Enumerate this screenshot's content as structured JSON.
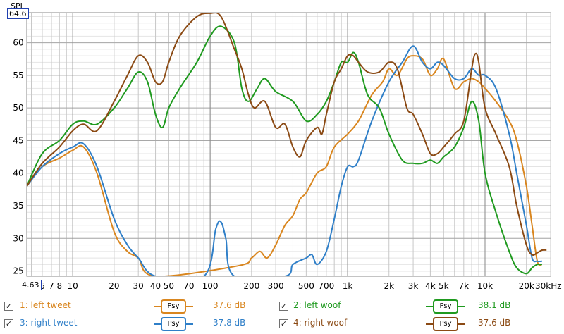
{
  "chart_data": {
    "type": "line",
    "ylabel": "SPL",
    "xscale": "log",
    "xlim": [
      4.63,
      30000
    ],
    "ylim": [
      24.2,
      64.6
    ],
    "range_max_label": "64.6",
    "range_min_label": "4.63",
    "y_ticks": [
      25,
      30,
      35,
      40,
      45,
      50,
      55,
      60
    ],
    "x_ticks": [
      {
        "v": 6,
        "t": "6"
      },
      {
        "v": 7,
        "t": "7"
      },
      {
        "v": 8,
        "t": "8"
      },
      {
        "v": 10,
        "t": "10"
      },
      {
        "v": 20,
        "t": "20"
      },
      {
        "v": 30,
        "t": "30"
      },
      {
        "v": 40,
        "t": "40"
      },
      {
        "v": 50,
        "t": "50"
      },
      {
        "v": 70,
        "t": "70"
      },
      {
        "v": 100,
        "t": "100"
      },
      {
        "v": 200,
        "t": "200"
      },
      {
        "v": 300,
        "t": "300"
      },
      {
        "v": 500,
        "t": "500"
      },
      {
        "v": 700,
        "t": "700"
      },
      {
        "v": 1000,
        "t": "1k"
      },
      {
        "v": 2000,
        "t": "2k"
      },
      {
        "v": 3000,
        "t": "3k"
      },
      {
        "v": 4000,
        "t": "4k"
      },
      {
        "v": 5000,
        "t": "5k"
      },
      {
        "v": 7000,
        "t": "7k"
      },
      {
        "v": 10000,
        "t": "10k"
      },
      {
        "v": 20000,
        "t": "20k"
      },
      {
        "v": 30000,
        "t": "30kHz"
      }
    ],
    "grid": true,
    "series": [
      {
        "name": "1: left tweet",
        "color": "#d9861f",
        "points": [
          [
            4.63,
            38
          ],
          [
            6,
            41
          ],
          [
            8,
            42.3
          ],
          [
            10,
            43.5
          ],
          [
            12,
            44
          ],
          [
            15,
            40
          ],
          [
            20,
            31
          ],
          [
            25,
            28
          ],
          [
            30,
            27
          ],
          [
            40,
            24.2
          ],
          [
            160,
            25.8
          ],
          [
            200,
            27
          ],
          [
            230,
            28
          ],
          [
            260,
            27
          ],
          [
            300,
            29
          ],
          [
            350,
            32
          ],
          [
            400,
            33.5
          ],
          [
            450,
            36
          ],
          [
            500,
            37
          ],
          [
            600,
            40
          ],
          [
            700,
            41
          ],
          [
            800,
            44
          ],
          [
            1000,
            46
          ],
          [
            1200,
            48
          ],
          [
            1500,
            52
          ],
          [
            1800,
            54
          ],
          [
            2000,
            56
          ],
          [
            2300,
            55
          ],
          [
            2700,
            57.5
          ],
          [
            3000,
            58
          ],
          [
            3500,
            57.5
          ],
          [
            4000,
            55
          ],
          [
            4500,
            56
          ],
          [
            5000,
            57.5
          ],
          [
            6000,
            53
          ],
          [
            7000,
            54
          ],
          [
            8000,
            54.5
          ],
          [
            9000,
            54
          ],
          [
            10000,
            53
          ],
          [
            12000,
            51
          ],
          [
            15000,
            48
          ],
          [
            17000,
            45
          ],
          [
            20000,
            38
          ],
          [
            22000,
            32
          ],
          [
            24000,
            26.5
          ],
          [
            26000,
            26
          ]
        ]
      },
      {
        "name": "2: left woof",
        "color": "#1f9a1f",
        "points": [
          [
            4.63,
            38
          ],
          [
            6,
            43
          ],
          [
            8,
            45
          ],
          [
            10,
            47.5
          ],
          [
            12,
            48
          ],
          [
            15,
            47.5
          ],
          [
            20,
            50
          ],
          [
            25,
            53
          ],
          [
            30,
            55.5
          ],
          [
            35,
            54
          ],
          [
            40,
            49
          ],
          [
            45,
            47
          ],
          [
            50,
            50
          ],
          [
            60,
            53
          ],
          [
            80,
            57
          ],
          [
            100,
            61
          ],
          [
            120,
            62.5
          ],
          [
            150,
            60
          ],
          [
            170,
            53
          ],
          [
            190,
            51
          ],
          [
            220,
            53
          ],
          [
            250,
            54.5
          ],
          [
            300,
            52.5
          ],
          [
            400,
            51
          ],
          [
            500,
            48
          ],
          [
            600,
            49
          ],
          [
            700,
            51
          ],
          [
            800,
            54
          ],
          [
            900,
            57
          ],
          [
            1000,
            57
          ],
          [
            1100,
            58.5
          ],
          [
            1200,
            57
          ],
          [
            1400,
            52
          ],
          [
            1700,
            50
          ],
          [
            2000,
            46
          ],
          [
            2500,
            42
          ],
          [
            3000,
            41.5
          ],
          [
            3500,
            41.5
          ],
          [
            4000,
            42
          ],
          [
            4500,
            41.5
          ],
          [
            5000,
            42.5
          ],
          [
            6000,
            44
          ],
          [
            7000,
            47
          ],
          [
            8000,
            51
          ],
          [
            9000,
            48
          ],
          [
            10000,
            40
          ],
          [
            12000,
            34
          ],
          [
            15000,
            28
          ],
          [
            17000,
            25.5
          ],
          [
            20000,
            24.6
          ],
          [
            22000,
            25.5
          ],
          [
            24000,
            26
          ],
          [
            26000,
            26
          ]
        ]
      },
      {
        "name": "3: right tweet",
        "color": "#2f7fc8",
        "points": [
          [
            4.63,
            38
          ],
          [
            6,
            41
          ],
          [
            8,
            43
          ],
          [
            10,
            44
          ],
          [
            12,
            44.5
          ],
          [
            15,
            41
          ],
          [
            20,
            33
          ],
          [
            25,
            29
          ],
          [
            30,
            27
          ],
          [
            40,
            24.2
          ],
          [
            90,
            24.2
          ],
          [
            110,
            31.5
          ],
          [
            120,
            32.5
          ],
          [
            130,
            30
          ],
          [
            150,
            24.2
          ],
          [
            350,
            24.2
          ],
          [
            400,
            26
          ],
          [
            500,
            27
          ],
          [
            550,
            27.5
          ],
          [
            600,
            26
          ],
          [
            700,
            28
          ],
          [
            800,
            33
          ],
          [
            900,
            38
          ],
          [
            1000,
            41
          ],
          [
            1100,
            41
          ],
          [
            1200,
            42
          ],
          [
            1500,
            48
          ],
          [
            2000,
            54
          ],
          [
            2500,
            57
          ],
          [
            3000,
            59.5
          ],
          [
            3500,
            57
          ],
          [
            4000,
            56
          ],
          [
            4500,
            57
          ],
          [
            5000,
            56.5
          ],
          [
            6000,
            54.5
          ],
          [
            7000,
            54.5
          ],
          [
            8000,
            56
          ],
          [
            9000,
            55
          ],
          [
            10000,
            55
          ],
          [
            12000,
            53
          ],
          [
            15000,
            46
          ],
          [
            17000,
            40
          ],
          [
            20000,
            32
          ],
          [
            22000,
            27
          ],
          [
            24000,
            26.5
          ],
          [
            26000,
            26.5
          ]
        ]
      },
      {
        "name": "4: right woof",
        "color": "#8b4a14",
        "points": [
          [
            4.63,
            38
          ],
          [
            6,
            41.5
          ],
          [
            8,
            44
          ],
          [
            10,
            46.5
          ],
          [
            12,
            47.5
          ],
          [
            15,
            46.5
          ],
          [
            20,
            51
          ],
          [
            25,
            55
          ],
          [
            30,
            58
          ],
          [
            35,
            57
          ],
          [
            40,
            54
          ],
          [
            45,
            54
          ],
          [
            50,
            57
          ],
          [
            60,
            61
          ],
          [
            80,
            64
          ],
          [
            100,
            64.5
          ],
          [
            120,
            64
          ],
          [
            150,
            59
          ],
          [
            170,
            56
          ],
          [
            190,
            52
          ],
          [
            210,
            50
          ],
          [
            250,
            51
          ],
          [
            300,
            47
          ],
          [
            350,
            47.5
          ],
          [
            400,
            44
          ],
          [
            450,
            42.5
          ],
          [
            500,
            45
          ],
          [
            600,
            47
          ],
          [
            650,
            46
          ],
          [
            700,
            49
          ],
          [
            800,
            54
          ],
          [
            900,
            56
          ],
          [
            1000,
            58
          ],
          [
            1100,
            58
          ],
          [
            1200,
            57
          ],
          [
            1400,
            55.5
          ],
          [
            1700,
            55.5
          ],
          [
            2000,
            57
          ],
          [
            2300,
            56
          ],
          [
            2700,
            50
          ],
          [
            3000,
            49
          ],
          [
            3500,
            46
          ],
          [
            4000,
            43
          ],
          [
            4500,
            43
          ],
          [
            5000,
            44
          ],
          [
            6000,
            46
          ],
          [
            7000,
            48
          ],
          [
            8000,
            56
          ],
          [
            8500,
            58.3
          ],
          [
            9000,
            57
          ],
          [
            10000,
            50
          ],
          [
            12000,
            46
          ],
          [
            15000,
            41
          ],
          [
            17000,
            35
          ],
          [
            20000,
            29
          ],
          [
            22000,
            27.5
          ],
          [
            24000,
            27.8
          ],
          [
            26000,
            28.2
          ],
          [
            28000,
            28.2
          ]
        ]
      }
    ]
  },
  "legend": [
    [
      {
        "label": "1: left tweet",
        "psy": "Psy",
        "value": "37.6 dB",
        "color": "#d9861f"
      },
      {
        "label": "2: left woof",
        "psy": "Psy",
        "value": "38.1 dB",
        "color": "#1f9a1f"
      }
    ],
    [
      {
        "label": "3: right tweet",
        "psy": "Psy",
        "value": "37.8 dB",
        "color": "#2f7fc8"
      },
      {
        "label": "4: right woof",
        "psy": "Psy",
        "value": "37.6 dB",
        "color": "#8b4a14"
      }
    ]
  ]
}
